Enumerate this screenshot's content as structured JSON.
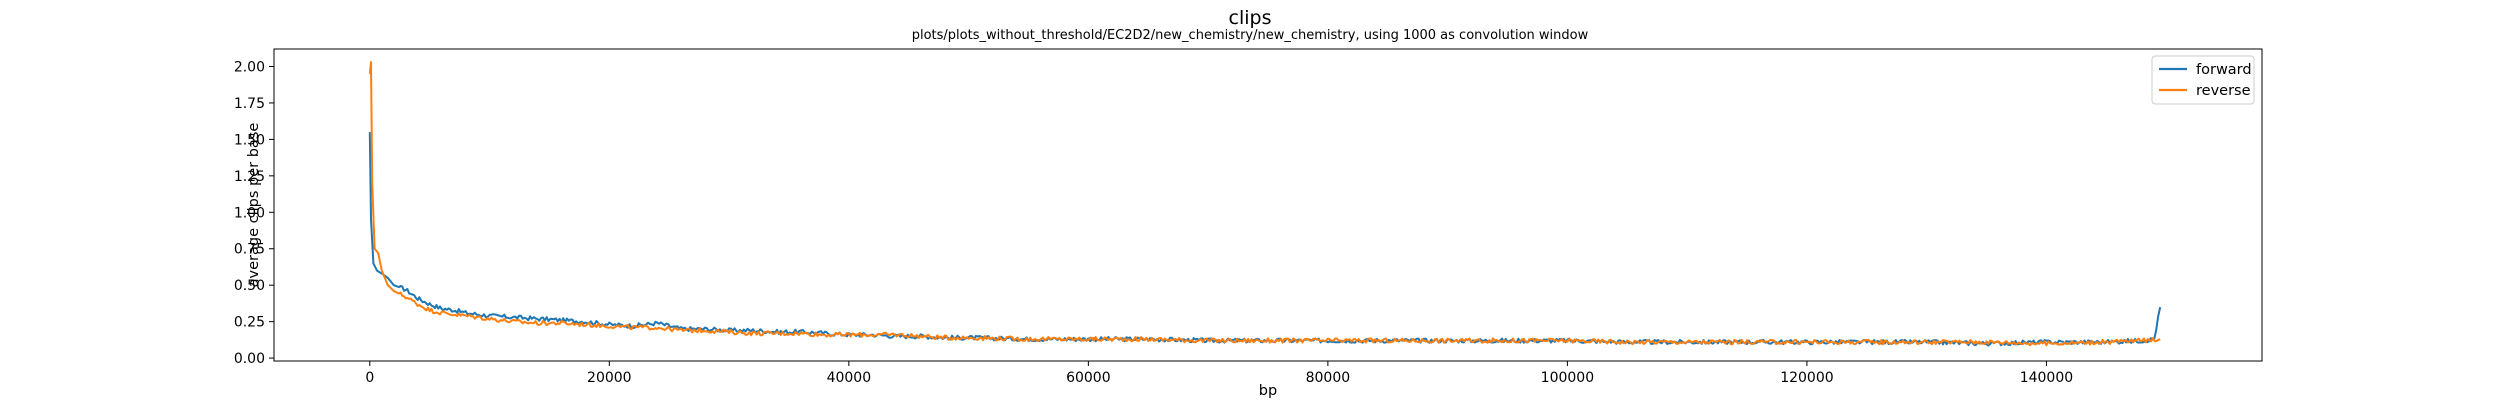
{
  "chart_data": {
    "type": "line",
    "title": "clips",
    "subtitle": "plots/plots_without_threshold/EC2D2/new_chemistry/new_chemistry, using 1000 as convolution window",
    "xlabel": "bp",
    "ylabel": "average clips per base",
    "xlim": [
      -8000,
      158000
    ],
    "ylim": [
      -0.02,
      2.12
    ],
    "xticks": [
      0,
      20000,
      40000,
      60000,
      80000,
      100000,
      120000,
      140000
    ],
    "xtick_labels": [
      "0",
      "20000",
      "40000",
      "60000",
      "80000",
      "100000",
      "120000",
      "140000"
    ],
    "yticks": [
      0.0,
      0.25,
      0.5,
      0.75,
      1.0,
      1.25,
      1.5,
      1.75,
      2.0
    ],
    "ytick_labels": [
      "0.00",
      "0.25",
      "0.50",
      "0.75",
      "1.00",
      "1.25",
      "1.50",
      "1.75",
      "2.00"
    ],
    "grid": false,
    "legend_position": "top-right",
    "series": [
      {
        "name": "forward",
        "color": "#1f77b4",
        "x": [
          0,
          100,
          300,
          600,
          1000,
          1500,
          2000,
          3000,
          4000,
          5000,
          6000,
          7000,
          8000,
          10000,
          12000,
          14000,
          16000,
          18000,
          20000,
          22000,
          24000,
          26000,
          28000,
          30000,
          32000,
          34000,
          36000,
          38000,
          40000,
          42000,
          44000,
          46000,
          48000,
          50000,
          55000,
          60000,
          65000,
          70000,
          75000,
          80000,
          85000,
          90000,
          95000,
          100000,
          105000,
          110000,
          115000,
          120000,
          125000,
          130000,
          135000,
          140000,
          145000,
          148000,
          149000,
          149500
        ],
        "y": [
          1.55,
          0.95,
          0.65,
          0.6,
          0.58,
          0.55,
          0.5,
          0.47,
          0.41,
          0.37,
          0.34,
          0.33,
          0.31,
          0.29,
          0.28,
          0.27,
          0.26,
          0.25,
          0.23,
          0.22,
          0.24,
          0.2,
          0.2,
          0.19,
          0.19,
          0.18,
          0.18,
          0.17,
          0.16,
          0.16,
          0.15,
          0.15,
          0.14,
          0.14,
          0.13,
          0.13,
          0.13,
          0.12,
          0.12,
          0.12,
          0.12,
          0.12,
          0.12,
          0.12,
          0.11,
          0.11,
          0.11,
          0.11,
          0.11,
          0.11,
          0.1,
          0.11,
          0.11,
          0.12,
          0.13,
          0.35
        ]
      },
      {
        "name": "reverse",
        "color": "#ff7f0e",
        "x": [
          0,
          100,
          200,
          400,
          700,
          1000,
          1500,
          2000,
          3000,
          4000,
          5000,
          6000,
          7000,
          8000,
          10000,
          12000,
          14000,
          16000,
          18000,
          20000,
          22000,
          24000,
          26000,
          28000,
          30000,
          32000,
          34000,
          36000,
          38000,
          40000,
          42000,
          44000,
          46000,
          48000,
          50000,
          55000,
          60000,
          65000,
          70000,
          75000,
          80000,
          85000,
          90000,
          95000,
          100000,
          105000,
          110000,
          115000,
          120000,
          125000,
          130000,
          135000,
          140000,
          145000,
          148000,
          149500
        ],
        "y": [
          1.95,
          2.03,
          1.2,
          0.75,
          0.72,
          0.6,
          0.5,
          0.46,
          0.42,
          0.37,
          0.33,
          0.31,
          0.3,
          0.29,
          0.27,
          0.25,
          0.24,
          0.24,
          0.23,
          0.22,
          0.21,
          0.21,
          0.19,
          0.19,
          0.18,
          0.17,
          0.17,
          0.17,
          0.16,
          0.16,
          0.16,
          0.16,
          0.15,
          0.14,
          0.14,
          0.13,
          0.13,
          0.13,
          0.12,
          0.12,
          0.12,
          0.12,
          0.12,
          0.12,
          0.12,
          0.11,
          0.11,
          0.11,
          0.11,
          0.11,
          0.11,
          0.11,
          0.1,
          0.11,
          0.12,
          0.13
        ]
      }
    ]
  }
}
